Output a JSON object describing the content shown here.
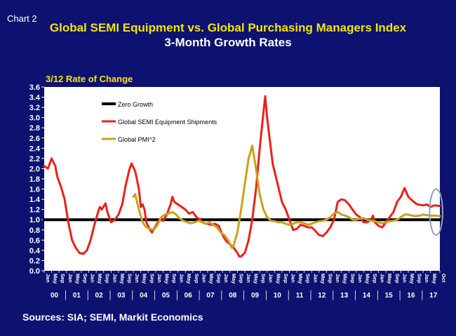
{
  "chart_label": "Chart 2",
  "source": "Sources: SIA; SEMI, Markit Economics",
  "chart_data": {
    "type": "line",
    "title": "Global SEMI Equipment vs. Global Purchasing Managers Index",
    "subtitle": "3-Month Growth Rates",
    "ylabel": "3/12 Rate of Change",
    "xlabel": "",
    "ylim": [
      0,
      3.6
    ],
    "ytick_step": 0.2,
    "grid": false,
    "legend_position": "top-left inside plot",
    "x_range": [
      "2000-01",
      "2017-10"
    ],
    "month_ticks": [
      "Jan",
      "May",
      "Sep"
    ],
    "year_labels": [
      "00",
      "01",
      "02",
      "03",
      "04",
      "05",
      "06",
      "07",
      "08",
      "09",
      "10",
      "11",
      "12",
      "13",
      "14",
      "15",
      "16",
      "17"
    ],
    "last_year_month_ticks": [
      "Jan",
      "May",
      "Oct"
    ],
    "colors": {
      "background": "#0d1270",
      "plot_background": "#ffffff",
      "semi": "#e8211c",
      "pmi": "#c8a21a",
      "zero": "#000000",
      "title": "#f5e600",
      "highlight_ellipse": "#8fa0b8"
    },
    "annotations": [
      {
        "type": "ellipse",
        "around": "2017 values",
        "center_x": "2017-08",
        "center_y": 1.15,
        "x_span_months": 7,
        "y_span": 0.9
      }
    ],
    "series": [
      {
        "name": "Zero Growth",
        "color": "#000000",
        "points": [
          [
            "2000-01",
            1.0
          ],
          [
            "2017-10",
            1.0
          ]
        ]
      },
      {
        "name": "Global SEMI Equipment Shipments",
        "color": "#e8211c",
        "points": [
          [
            "2000-01",
            2.05
          ],
          [
            "2000-03",
            2.0
          ],
          [
            "2000-05",
            2.2
          ],
          [
            "2000-07",
            2.05
          ],
          [
            "2000-08",
            1.85
          ],
          [
            "2000-10",
            1.65
          ],
          [
            "2000-12",
            1.4
          ],
          [
            "2001-02",
            0.95
          ],
          [
            "2001-04",
            0.6
          ],
          [
            "2001-06",
            0.45
          ],
          [
            "2001-08",
            0.35
          ],
          [
            "2001-10",
            0.33
          ],
          [
            "2001-12",
            0.4
          ],
          [
            "2002-02",
            0.6
          ],
          [
            "2002-04",
            0.9
          ],
          [
            "2002-06",
            1.15
          ],
          [
            "2002-07",
            1.25
          ],
          [
            "2002-08",
            1.2
          ],
          [
            "2002-10",
            1.32
          ],
          [
            "2002-11",
            1.15
          ],
          [
            "2003-01",
            0.95
          ],
          [
            "2003-03",
            1.0
          ],
          [
            "2003-05",
            1.1
          ],
          [
            "2003-07",
            1.3
          ],
          [
            "2003-09",
            1.7
          ],
          [
            "2003-11",
            2.0
          ],
          [
            "2003-12",
            2.1
          ],
          [
            "2004-02",
            1.95
          ],
          [
            "2004-04",
            1.6
          ],
          [
            "2004-05",
            1.25
          ],
          [
            "2004-06",
            1.3
          ],
          [
            "2004-07",
            1.2
          ],
          [
            "2004-08",
            0.95
          ],
          [
            "2004-10",
            0.8
          ],
          [
            "2004-11",
            0.75
          ],
          [
            "2005-01",
            0.88
          ],
          [
            "2005-03",
            1.0
          ],
          [
            "2005-05",
            0.98
          ],
          [
            "2005-07",
            1.1
          ],
          [
            "2005-09",
            1.3
          ],
          [
            "2005-10",
            1.45
          ],
          [
            "2005-11",
            1.35
          ],
          [
            "2006-01",
            1.3
          ],
          [
            "2006-03",
            1.25
          ],
          [
            "2006-05",
            1.2
          ],
          [
            "2006-07",
            1.12
          ],
          [
            "2006-09",
            1.15
          ],
          [
            "2006-11",
            1.05
          ],
          [
            "2007-01",
            1.0
          ],
          [
            "2007-03",
            0.93
          ],
          [
            "2007-05",
            0.92
          ],
          [
            "2007-07",
            0.9
          ],
          [
            "2007-09",
            0.92
          ],
          [
            "2007-11",
            0.88
          ],
          [
            "2008-01",
            0.7
          ],
          [
            "2008-03",
            0.58
          ],
          [
            "2008-05",
            0.52
          ],
          [
            "2008-07",
            0.45
          ],
          [
            "2008-09",
            0.35
          ],
          [
            "2008-10",
            0.28
          ],
          [
            "2008-11",
            0.28
          ],
          [
            "2009-01",
            0.35
          ],
          [
            "2009-03",
            0.6
          ],
          [
            "2009-05",
            1.0
          ],
          [
            "2009-07",
            1.6
          ],
          [
            "2009-09",
            2.4
          ],
          [
            "2009-11",
            3.1
          ],
          [
            "2009-12",
            3.42
          ],
          [
            "2010-01",
            3.0
          ],
          [
            "2010-02",
            2.7
          ],
          [
            "2010-03",
            2.4
          ],
          [
            "2010-04",
            2.1
          ],
          [
            "2010-05",
            1.95
          ],
          [
            "2010-07",
            1.65
          ],
          [
            "2010-09",
            1.35
          ],
          [
            "2010-11",
            1.2
          ],
          [
            "2011-01",
            1.0
          ],
          [
            "2011-03",
            0.8
          ],
          [
            "2011-05",
            0.82
          ],
          [
            "2011-07",
            0.9
          ],
          [
            "2011-09",
            0.88
          ],
          [
            "2011-11",
            0.85
          ],
          [
            "2012-01",
            0.85
          ],
          [
            "2012-03",
            0.78
          ],
          [
            "2012-05",
            0.7
          ],
          [
            "2012-07",
            0.68
          ],
          [
            "2012-09",
            0.75
          ],
          [
            "2012-11",
            0.85
          ],
          [
            "2013-01",
            1.0
          ],
          [
            "2013-03",
            1.35
          ],
          [
            "2013-05",
            1.4
          ],
          [
            "2013-07",
            1.38
          ],
          [
            "2013-09",
            1.3
          ],
          [
            "2013-11",
            1.2
          ],
          [
            "2014-01",
            1.1
          ],
          [
            "2014-03",
            1.05
          ],
          [
            "2014-05",
            0.95
          ],
          [
            "2014-07",
            0.95
          ],
          [
            "2014-09",
            1.0
          ],
          [
            "2014-10",
            1.08
          ],
          [
            "2014-11",
            0.95
          ],
          [
            "2015-01",
            0.88
          ],
          [
            "2015-03",
            0.85
          ],
          [
            "2015-05",
            0.95
          ],
          [
            "2015-07",
            1.05
          ],
          [
            "2015-09",
            1.15
          ],
          [
            "2015-11",
            1.35
          ],
          [
            "2016-01",
            1.45
          ],
          [
            "2016-03",
            1.62
          ],
          [
            "2016-05",
            1.45
          ],
          [
            "2016-07",
            1.38
          ],
          [
            "2016-09",
            1.32
          ],
          [
            "2016-10",
            1.3
          ],
          [
            "2017-01",
            1.28
          ],
          [
            "2017-03",
            1.3
          ],
          [
            "2017-05",
            1.25
          ],
          [
            "2017-07",
            1.28
          ],
          [
            "2017-10",
            1.27
          ]
        ]
      },
      {
        "name": "Global PMI^2",
        "color": "#c8a21a",
        "points": [
          [
            "2004-01",
            1.45
          ],
          [
            "2004-02",
            1.5
          ],
          [
            "2004-04",
            1.2
          ],
          [
            "2004-06",
            0.95
          ],
          [
            "2004-08",
            0.85
          ],
          [
            "2004-10",
            0.82
          ],
          [
            "2004-12",
            0.8
          ],
          [
            "2005-02",
            0.9
          ],
          [
            "2005-04",
            1.05
          ],
          [
            "2005-06",
            1.1
          ],
          [
            "2005-08",
            1.12
          ],
          [
            "2005-10",
            1.15
          ],
          [
            "2005-12",
            1.1
          ],
          [
            "2006-02",
            1.02
          ],
          [
            "2006-04",
            0.98
          ],
          [
            "2006-06",
            0.95
          ],
          [
            "2006-08",
            0.93
          ],
          [
            "2006-10",
            0.95
          ],
          [
            "2006-12",
            0.98
          ],
          [
            "2007-02",
            0.95
          ],
          [
            "2007-04",
            0.92
          ],
          [
            "2007-06",
            0.95
          ],
          [
            "2007-08",
            0.9
          ],
          [
            "2007-10",
            0.85
          ],
          [
            "2007-12",
            0.75
          ],
          [
            "2008-02",
            0.7
          ],
          [
            "2008-04",
            0.6
          ],
          [
            "2008-06",
            0.45
          ],
          [
            "2008-07",
            0.5
          ],
          [
            "2008-09",
            0.75
          ],
          [
            "2008-11",
            1.2
          ],
          [
            "2009-01",
            1.7
          ],
          [
            "2009-03",
            2.2
          ],
          [
            "2009-05",
            2.45
          ],
          [
            "2009-07",
            2.0
          ],
          [
            "2009-09",
            1.5
          ],
          [
            "2009-11",
            1.2
          ],
          [
            "2010-01",
            1.05
          ],
          [
            "2010-03",
            0.98
          ],
          [
            "2010-05",
            0.97
          ],
          [
            "2010-07",
            0.95
          ],
          [
            "2010-09",
            0.95
          ],
          [
            "2010-11",
            0.92
          ],
          [
            "2011-01",
            0.9
          ],
          [
            "2011-03",
            0.92
          ],
          [
            "2011-05",
            0.95
          ],
          [
            "2011-07",
            0.95
          ],
          [
            "2011-09",
            0.93
          ],
          [
            "2011-11",
            0.9
          ],
          [
            "2012-01",
            0.92
          ],
          [
            "2012-03",
            0.95
          ],
          [
            "2012-05",
            0.97
          ],
          [
            "2012-07",
            0.98
          ],
          [
            "2012-09",
            1.0
          ],
          [
            "2012-11",
            1.05
          ],
          [
            "2013-01",
            1.12
          ],
          [
            "2013-03",
            1.15
          ],
          [
            "2013-05",
            1.1
          ],
          [
            "2013-07",
            1.08
          ],
          [
            "2013-09",
            1.05
          ],
          [
            "2013-11",
            1.0
          ],
          [
            "2014-01",
            1.0
          ],
          [
            "2014-03",
            1.02
          ],
          [
            "2014-05",
            1.03
          ],
          [
            "2014-07",
            1.0
          ],
          [
            "2014-09",
            0.98
          ],
          [
            "2014-11",
            0.97
          ],
          [
            "2015-01",
            0.95
          ],
          [
            "2015-03",
            0.93
          ],
          [
            "2015-05",
            0.95
          ],
          [
            "2015-07",
            0.97
          ],
          [
            "2015-09",
            0.98
          ],
          [
            "2015-11",
            1.0
          ],
          [
            "2016-01",
            1.05
          ],
          [
            "2016-03",
            1.1
          ],
          [
            "2016-05",
            1.1
          ],
          [
            "2016-07",
            1.08
          ],
          [
            "2016-09",
            1.07
          ],
          [
            "2016-11",
            1.08
          ],
          [
            "2017-01",
            1.1
          ],
          [
            "2017-03",
            1.09
          ],
          [
            "2017-05",
            1.08
          ],
          [
            "2017-07",
            1.08
          ],
          [
            "2017-10",
            1.07
          ]
        ]
      }
    ]
  }
}
